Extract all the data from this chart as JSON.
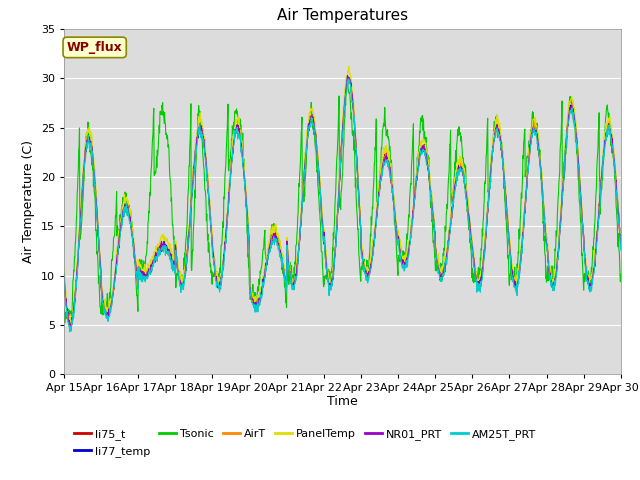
{
  "title": "Air Temperatures",
  "xlabel": "Time",
  "ylabel": "Air Temperature (C)",
  "ylim": [
    0,
    35
  ],
  "xlim": [
    0,
    15
  ],
  "x_tick_labels": [
    "Apr 15",
    "Apr 16",
    "Apr 17",
    "Apr 18",
    "Apr 19",
    "Apr 20",
    "Apr 21",
    "Apr 22",
    "Apr 23",
    "Apr 24",
    "Apr 25",
    "Apr 26",
    "Apr 27",
    "Apr 28",
    "Apr 29",
    "Apr 30"
  ],
  "series": [
    {
      "name": "li75_t",
      "color": "#cc0000"
    },
    {
      "name": "li77_temp",
      "color": "#0000cc"
    },
    {
      "name": "Tsonic",
      "color": "#00cc00"
    },
    {
      "name": "AirT",
      "color": "#ff8800"
    },
    {
      "name": "PanelTemp",
      "color": "#dddd00"
    },
    {
      "name": "NR01_PRT",
      "color": "#9900cc"
    },
    {
      "name": "AM25T_PRT",
      "color": "#00cccc"
    }
  ],
  "annotation_text": "WP_flux",
  "fig_bg_color": "#ffffff",
  "plot_bg_color": "#dcdcdc",
  "grid_color": "#ffffff",
  "title_fontsize": 11,
  "axis_fontsize": 9,
  "tick_fontsize": 8,
  "legend_fontsize": 8,
  "day_mins": [
    5,
    6,
    10,
    9,
    9,
    7,
    9,
    9,
    10,
    11,
    10,
    9,
    9,
    9,
    9
  ],
  "day_maxs": [
    24,
    17,
    13,
    25,
    25,
    14,
    26,
    30,
    22,
    23,
    21,
    25,
    25,
    27,
    25
  ],
  "tsonic_day_lo": [
    14,
    14,
    20,
    11,
    21,
    12,
    17,
    17,
    18,
    18,
    17,
    19,
    20,
    19,
    17
  ],
  "tsonic_day_hi": [
    25,
    18,
    27,
    27,
    27,
    15,
    27,
    30,
    26,
    26,
    25,
    26,
    26,
    28,
    27
  ]
}
